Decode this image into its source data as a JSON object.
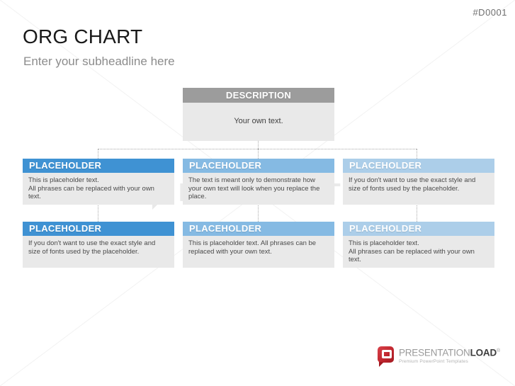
{
  "slide": {
    "code": "#D0001",
    "title": "ORG CHART",
    "subtitle": "Enter your subheadline here"
  },
  "org_chart": {
    "type": "org-tree",
    "root": {
      "header": "DESCRIPTION",
      "body": "Your own text.",
      "header_color": "#9c9c9c"
    },
    "boxes": [
      {
        "row": 1,
        "col": 1,
        "header": "PLACEHOLDER",
        "header_color": "#3f92d3",
        "body": "This is placeholder text.\nAll phrases can be replaced with your own text."
      },
      {
        "row": 1,
        "col": 2,
        "header": "PLACEHOLDER",
        "header_color": "#85bae3",
        "body": "The text is meant only to demonstrate how your own text will look when you replace the place."
      },
      {
        "row": 1,
        "col": 3,
        "header": "PLACEHOLDER",
        "header_color": "#accee9",
        "body": "If you don't want to use the exact style and size of fonts used by the placeholder."
      },
      {
        "row": 2,
        "col": 1,
        "header": "PLACEHOLDER",
        "header_color": "#3f92d3",
        "body": "If you don't want to use the exact style and size of fonts used by the placeholder."
      },
      {
        "row": 2,
        "col": 2,
        "header": "PLACEHOLDER",
        "header_color": "#85bae3",
        "body": "This is placeholder text. All phrases can be replaced with your own text."
      },
      {
        "row": 2,
        "col": 3,
        "header": "PLACEHOLDER",
        "header_color": "#accee9",
        "body": "This is placeholder text.\nAll phrases can be replaced with your own text."
      }
    ],
    "body_background": "#e9e9e9",
    "connector_color": "#a9a9a9"
  },
  "watermark": {
    "text": "PRESENTATIONLOAD"
  },
  "footer": {
    "brand_part1": "PRESENTATION",
    "brand_part2": "LOAD",
    "registered": "®",
    "tagline": "Premium PowerPoint Templates",
    "brand_red": "#c1272f"
  }
}
